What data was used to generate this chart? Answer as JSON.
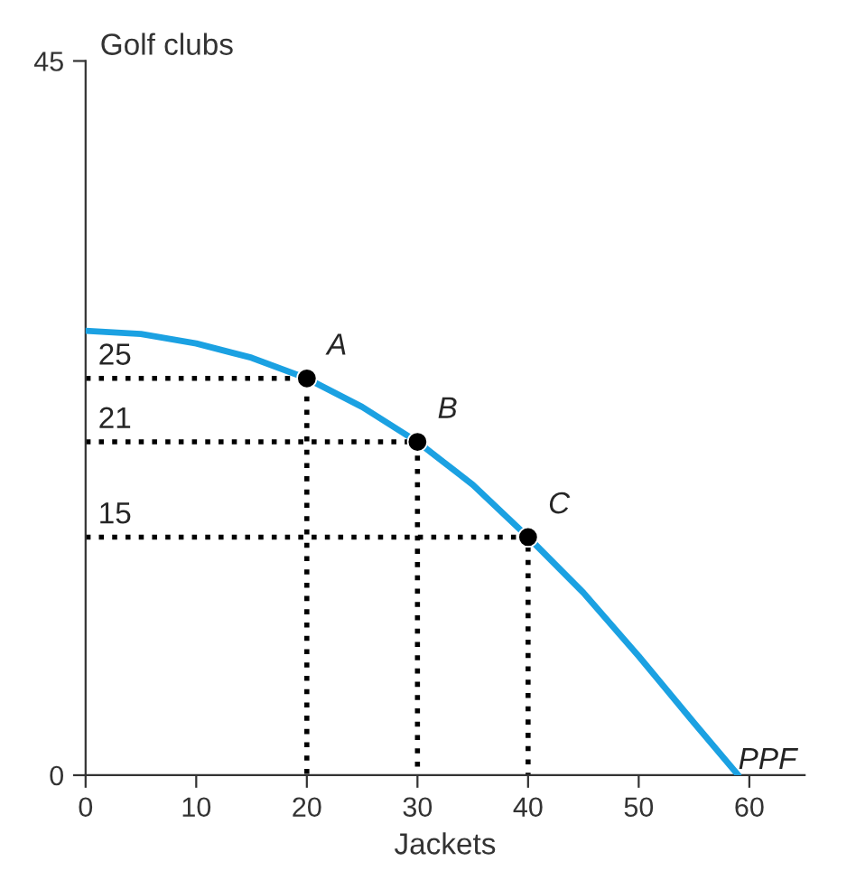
{
  "chart_data": {
    "type": "line",
    "xlabel": "Jackets",
    "ylabel": "Golf clubs",
    "xlim": [
      0,
      65
    ],
    "ylim": [
      0,
      45
    ],
    "xticks": [
      0,
      10,
      20,
      30,
      40,
      50,
      60
    ],
    "yticks": [
      0,
      45
    ],
    "grid": false,
    "legend": false,
    "series": [
      {
        "name": "PPF",
        "color": "#1ba1e2",
        "line_style": "solid",
        "marker": "none",
        "x": [
          0,
          5,
          10,
          15,
          20,
          25,
          30,
          35,
          40,
          45,
          50,
          55,
          59
        ],
        "values": [
          28,
          27.8,
          27.2,
          26.3,
          25,
          23.2,
          21,
          18.3,
          15,
          11.5,
          7.5,
          3.3,
          0
        ]
      },
      {
        "color": "#000000",
        "line_style": "dotted",
        "marker": "none",
        "x": [
          0,
          20,
          20
        ],
        "values": [
          25,
          25,
          0
        ]
      },
      {
        "color": "#000000",
        "line_style": "dotted",
        "marker": "none",
        "x": [
          0,
          30,
          30
        ],
        "values": [
          21,
          21,
          0
        ]
      },
      {
        "color": "#000000",
        "line_style": "dotted",
        "marker": "none",
        "x": [
          0,
          40,
          40
        ],
        "values": [
          15,
          15,
          0
        ]
      },
      {
        "type": "scatter",
        "color": "#000000",
        "marker": "circle",
        "x": [
          20,
          30,
          40
        ],
        "values": [
          25,
          21,
          15
        ]
      }
    ],
    "annotations": [
      {
        "text": "A",
        "x": 20,
        "y": 25
      },
      {
        "text": "B",
        "x": 30,
        "y": 21
      },
      {
        "text": "C",
        "x": 40,
        "y": 15
      },
      {
        "text": "25",
        "x": 0,
        "y": 25
      },
      {
        "text": "21",
        "x": 0,
        "y": 21
      },
      {
        "text": "15",
        "x": 0,
        "y": 15
      }
    ]
  }
}
